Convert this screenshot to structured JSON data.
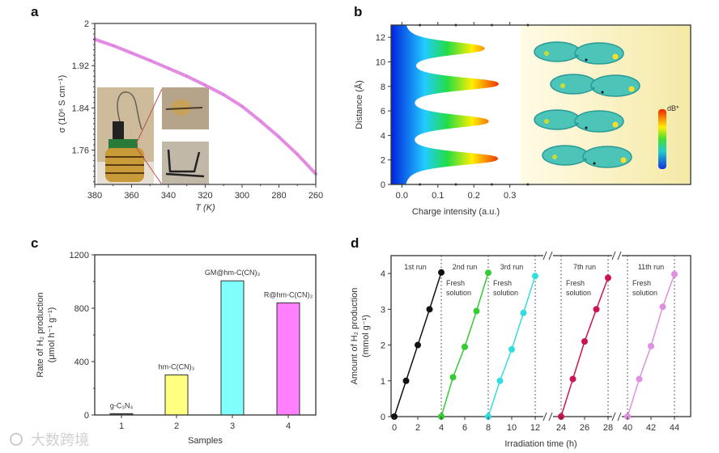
{
  "panels": {
    "a": "a",
    "b": "b",
    "c": "c",
    "d": "d"
  },
  "watermark": "大数跨境",
  "chart_data": [
    {
      "id": "a",
      "type": "line",
      "xlabel": "T (K)",
      "ylabel": "σ (10⁶ S cm⁻¹)",
      "xlim": [
        380,
        260
      ],
      "ylim": [
        1.695,
        2.0
      ],
      "xticks": [
        "380",
        "360",
        "340",
        "320",
        "300",
        "280",
        "260"
      ],
      "yticks": [
        "2",
        "1.92",
        "1.84",
        "1.76"
      ],
      "x": [
        380,
        370,
        360,
        350,
        340,
        330,
        320,
        310,
        300,
        290,
        280,
        270,
        260
      ],
      "y": [
        1.97,
        1.958,
        1.944,
        1.93,
        1.915,
        1.9,
        1.883,
        1.865,
        1.843,
        1.815,
        1.785,
        1.752,
        1.715
      ],
      "color": "#e07ee0",
      "inset": "photo of sample holder"
    },
    {
      "id": "b",
      "type": "area",
      "xlabel": "Charge intensity (a.u.)",
      "ylabel": "Distance (Å)",
      "xlim": [
        -0.03,
        0.33
      ],
      "ylim": [
        0,
        13
      ],
      "xticks": [
        "0.0",
        "0.1",
        "0.2",
        "0.3"
      ],
      "yticks": [
        "0",
        "2",
        "4",
        "6",
        "8",
        "10",
        "12"
      ],
      "peaks": [
        {
          "distance": 2.1,
          "intensity": 0.26
        },
        {
          "distance": 5.15,
          "intensity": 0.232
        },
        {
          "distance": 8.2,
          "intensity": 0.26
        },
        {
          "distance": 11.1,
          "intensity": 0.222
        }
      ],
      "colorbar_label": "dB*"
    },
    {
      "id": "c",
      "type": "bar",
      "xlabel": "Samples",
      "ylabel": "Rate of H₂ production",
      "ylabel2": "(μmol h⁻¹ g⁻¹)",
      "ylim": [
        0,
        1200
      ],
      "yticks": [
        "0",
        "400",
        "800",
        "1200"
      ],
      "categories": [
        "1",
        "2",
        "3",
        "4"
      ],
      "values": [
        10,
        300,
        1005,
        840
      ],
      "labels": [
        "g-C₃N₄",
        "hm-C(CN)₃",
        "GM@hm-C(CN)₃",
        "R@hm-C(CN)₃"
      ],
      "colors": [
        "#555555",
        "#ffff80",
        "#80ffff",
        "#ff80ff"
      ]
    },
    {
      "id": "d",
      "type": "line",
      "xlabel": "Irradiation time (h)",
      "ylabel": "Amount of H₂ production",
      "ylabel2": "(mmol g⁻¹)",
      "ylim": [
        0,
        4.5
      ],
      "yticks": [
        "0",
        "1",
        "2",
        "3",
        "4"
      ],
      "xticks": [
        "0",
        "2",
        "4",
        "6",
        "8",
        "10",
        "12",
        "24",
        "26",
        "28",
        "40",
        "42",
        "44"
      ],
      "x_break_segments": [
        [
          0,
          12
        ],
        [
          24,
          28
        ],
        [
          40,
          44
        ]
      ],
      "run_boundaries": [
        4,
        8,
        12,
        24,
        28,
        40,
        44
      ],
      "note": "Fresh solution",
      "series": [
        {
          "name": "1st run",
          "color": "#111111",
          "x": [
            0,
            1,
            2,
            3,
            4
          ],
          "y": [
            0,
            1,
            2,
            3,
            4.03
          ]
        },
        {
          "name": "2nd run",
          "color": "#33cc33",
          "x": [
            4,
            5,
            6,
            7,
            8
          ],
          "y": [
            0,
            1.1,
            1.95,
            2.95,
            4.02
          ]
        },
        {
          "name": "3rd run",
          "color": "#33dddd",
          "x": [
            8,
            9,
            10,
            11,
            12
          ],
          "y": [
            0,
            1.0,
            1.88,
            2.9,
            3.93
          ]
        },
        {
          "name": "7th run",
          "color": "#cc1155",
          "x": [
            24,
            25,
            26,
            27,
            28
          ],
          "y": [
            0,
            1.05,
            2.1,
            3.0,
            3.88
          ]
        },
        {
          "name": "11th run",
          "color": "#e090e0",
          "x": [
            40,
            41,
            42,
            43,
            44
          ],
          "y": [
            0,
            1.05,
            1.97,
            3.07,
            3.98
          ]
        }
      ]
    }
  ]
}
